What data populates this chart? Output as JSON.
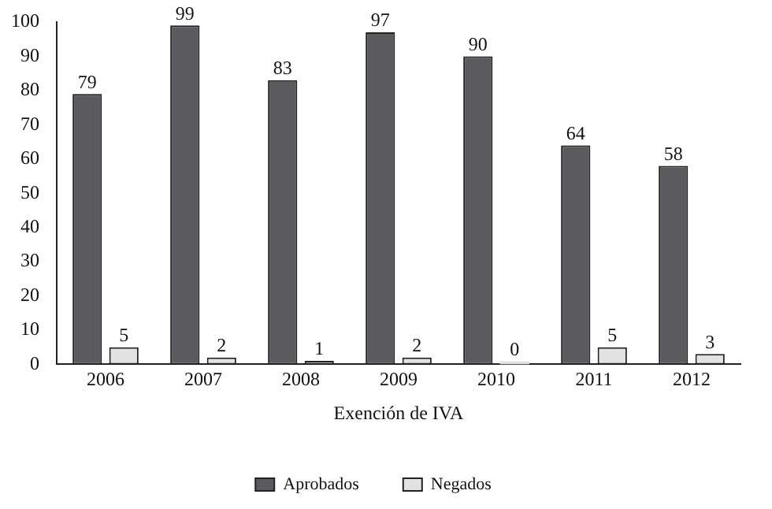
{
  "chart_data": {
    "type": "bar",
    "xlabel": "Exención de IVA",
    "categories": [
      "2006",
      "2007",
      "2008",
      "2009",
      "2010",
      "2011",
      "2012"
    ],
    "series": [
      {
        "name": "Aprobados",
        "color": "#5b5b5d",
        "values": [
          79,
          99,
          83,
          97,
          90,
          64,
          58
        ]
      },
      {
        "name": "Negados",
        "color": "#e2e2e2",
        "values": [
          5,
          2,
          1,
          2,
          0,
          5,
          3
        ]
      }
    ],
    "ylim": [
      0,
      100
    ],
    "yticks": [
      0,
      10,
      20,
      30,
      40,
      50,
      60,
      70,
      80,
      90,
      100
    ],
    "grid": false,
    "legend": "bottom",
    "data_labels": true
  }
}
